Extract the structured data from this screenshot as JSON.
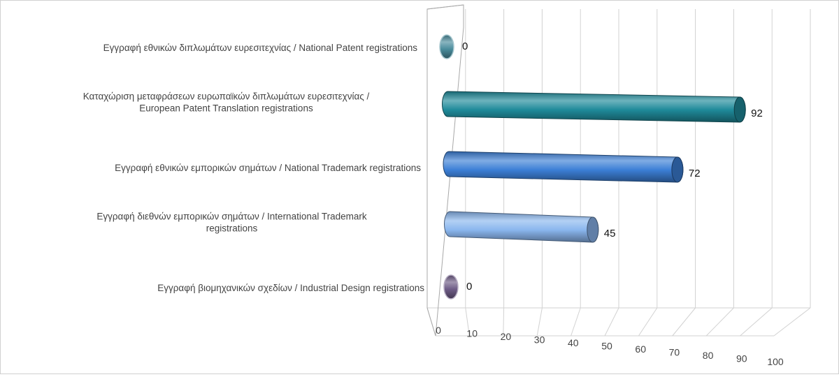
{
  "chart_data": {
    "type": "bar",
    "orientation": "horizontal",
    "style": "3d-cylinder",
    "title": "",
    "xlabel": "",
    "ylabel": "",
    "xlim": [
      0,
      100
    ],
    "tick_values": [
      0,
      10,
      20,
      30,
      40,
      50,
      60,
      70,
      80,
      90,
      100
    ],
    "tick_labels": [
      "0",
      "10",
      "20",
      "30",
      "40",
      "50",
      "60",
      "70",
      "80",
      "90",
      "100"
    ],
    "grid": true,
    "legend": "none",
    "categories": [
      [
        "Εγγραφή  εθνικών διπλωμάτων ευρεσιτεχνίας / National Patent registrations"
      ],
      [
        "Καταχώριση μεταφράσεων ευρωπαϊκών διπλωμάτων ευρεσιτεχνίας /",
        "European Patent Translation registrations"
      ],
      [
        "Εγγραφή  εθνικών εμπορικών σημάτων / National Trademark registrations"
      ],
      [
        "Εγγραφή  διεθνών εμπορικών σημάτων / International Trademark",
        "registrations"
      ],
      [
        "Εγγραφή  βιομηχανικών σχεδίων / Industrial Design registrations"
      ]
    ],
    "values": [
      0,
      92,
      72,
      45,
      0
    ],
    "value_labels": [
      "0",
      "92",
      "72",
      "45",
      "0"
    ],
    "colors": [
      "#4a8c9c",
      "#1f8a9a",
      "#3c7fd6",
      "#8ab6ee",
      "#6e5c86"
    ]
  }
}
